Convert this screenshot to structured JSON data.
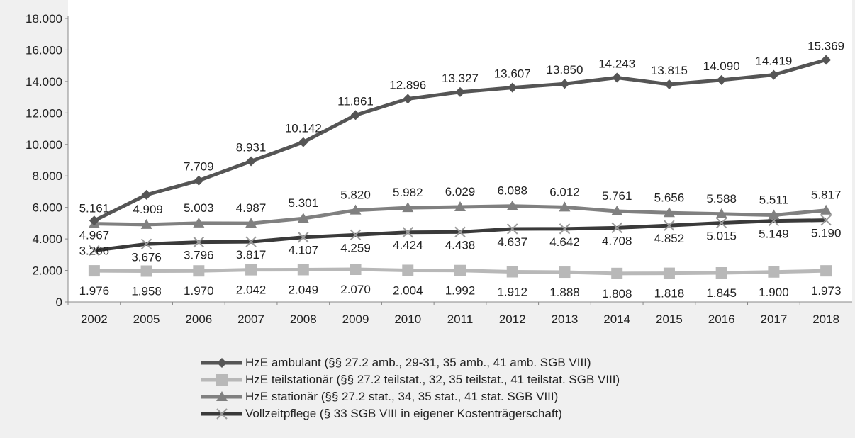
{
  "chart_data": {
    "type": "line",
    "categories": [
      "2002",
      "2005",
      "2006",
      "2007",
      "2008",
      "2009",
      "2010",
      "2011",
      "2012",
      "2013",
      "2014",
      "2015",
      "2016",
      "2017",
      "2018"
    ],
    "ylim": [
      0,
      18000
    ],
    "yticks": [
      0,
      2000,
      4000,
      6000,
      8000,
      10000,
      12000,
      14000,
      16000,
      18000
    ],
    "ytick_labels": [
      "0",
      "2.000",
      "4.000",
      "6.000",
      "8.000",
      "10.000",
      "12.000",
      "14.000",
      "16.000",
      "18.000"
    ],
    "grid": false,
    "legend_position": "bottom",
    "series": [
      {
        "name": "HzE ambulant (§§ 27.2 amb., 29-31, 35 amb., 41 amb. SGB VIII)",
        "marker": "diamond",
        "color": "#555555",
        "values": [
          5161,
          6800,
          7709,
          8931,
          10142,
          11861,
          12896,
          13327,
          13607,
          13850,
          14243,
          13815,
          14090,
          14419,
          15369
        ],
        "labels": [
          "5.161",
          "",
          "7.709",
          "8.931",
          "10.142",
          "11.861",
          "12.896",
          "13.327",
          "13.607",
          "13.850",
          "14.243",
          "13.815",
          "14.090",
          "14.419",
          "15.369"
        ]
      },
      {
        "name": "HzE teilstationär (§§ 27.2 teilstat., 32, 35 teilstat., 41 teilstat. SGB VIII)",
        "marker": "square",
        "color": "#b8b8b8",
        "values": [
          1976,
          1958,
          1970,
          2042,
          2049,
          2070,
          2004,
          1992,
          1912,
          1888,
          1808,
          1818,
          1845,
          1900,
          1973
        ],
        "labels": [
          "1.976",
          "1.958",
          "1.970",
          "2.042",
          "2.049",
          "2.070",
          "2.004",
          "1.992",
          "1.912",
          "1.888",
          "1.808",
          "1.818",
          "1.845",
          "1.900",
          "1.973"
        ]
      },
      {
        "name": "HzE stationär (§§ 27.2 stat., 34, 35 stat., 41 stat. SGB VIII)",
        "marker": "triangle",
        "color": "#808080",
        "values": [
          4967,
          4909,
          5003,
          4987,
          5301,
          5820,
          5982,
          6029,
          6088,
          6012,
          5761,
          5656,
          5588,
          5511,
          5817
        ],
        "labels": [
          "4.967",
          "4.909",
          "5.003",
          "4.987",
          "5.301",
          "5.820",
          "5.982",
          "6.029",
          "6.088",
          "6.012",
          "5.761",
          "5.656",
          "5.588",
          "5.511",
          "5.817"
        ]
      },
      {
        "name": "Vollzeitpflege (§ 33 SGB VIII in eigener Kostenträgerschaft)",
        "marker": "x",
        "color": "#3a3a3a",
        "values": [
          3266,
          3676,
          3796,
          3817,
          4107,
          4259,
          4424,
          4438,
          4637,
          4642,
          4708,
          4852,
          5015,
          5149,
          5190
        ],
        "labels": [
          "3.266",
          "3.676",
          "3.796",
          "3.817",
          "4.107",
          "4.259",
          "4.424",
          "4.438",
          "4.637",
          "4.642",
          "4.708",
          "4.852",
          "5.015",
          "5.149",
          "5.190"
        ]
      }
    ]
  }
}
